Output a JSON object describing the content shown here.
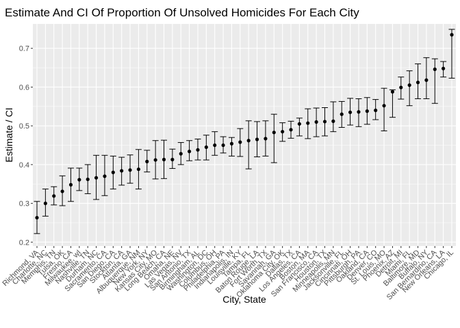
{
  "chart_data": {
    "type": "scatter",
    "title": "Estimate And CI Of Proportion Of Unsolved Homicides For Each City",
    "xlabel": "City, State",
    "ylabel": "Estimate / CI",
    "ylim": [
      0.2,
      0.75
    ],
    "yticks": [
      0.2,
      0.3,
      0.4,
      0.5,
      0.6,
      0.7
    ],
    "grid": true,
    "background": "#EBEBEB",
    "point_color": "#000000",
    "categories": [
      "Richmond, VA",
      "Charlotte, NC",
      "Memphis, TN",
      "Tulsa, OK",
      "Fresno, CA",
      "Milwaukee, wI",
      "Nashville, TN",
      "Durham, NC",
      "Sacramento, CA",
      "San Diego, CA",
      "Stockton, CA",
      "Atlanta, GA",
      "Albuquerque, NM",
      "New York, NY",
      "Kansas City, MO",
      "Long Beach, CA",
      "Omaha, NE",
      "Las Vegas, NV",
      "San Antonio, TX",
      "Birmingham, AL",
      "Washington, DC",
      "Columbus, OH",
      "Philadelphia, PA",
      "Indianapolis, IN",
      "Louisville, KY",
      "Tampa, FL",
      "Baton Rouge, LA",
      "Fort Worth, TX",
      "Savannah, GA",
      "Oklahoma City, OK",
      "Dallas, TX",
      "Los Angeles, CA",
      "Boston, MA",
      "San Francisco, CA",
      "Houston, TX",
      "Minneapolis, MN",
      "Jacksonville, FL",
      "Cincinnati, OH",
      "Pittsburgh, PA",
      "Oakland, CA",
      "Denver, CO",
      "St. Louis, MO",
      "Phoenix, AZ",
      "Detroit, MI",
      "Miami, FL",
      "Baltimore, MD",
      "Buffalo, NY",
      "San Bernardino, CA",
      "New Orleans, LA",
      "Chicago, IL"
    ],
    "estimate": [
      0.263,
      0.3,
      0.319,
      0.331,
      0.348,
      0.361,
      0.362,
      0.366,
      0.37,
      0.38,
      0.384,
      0.386,
      0.388,
      0.408,
      0.412,
      0.413,
      0.413,
      0.428,
      0.434,
      0.438,
      0.445,
      0.45,
      0.45,
      0.454,
      0.458,
      0.462,
      0.465,
      0.467,
      0.483,
      0.485,
      0.49,
      0.505,
      0.507,
      0.51,
      0.511,
      0.512,
      0.53,
      0.535,
      0.536,
      0.538,
      0.54,
      0.552,
      0.588,
      0.599,
      0.605,
      0.612,
      0.618,
      0.646,
      0.648,
      0.735
    ],
    "ci_low": [
      0.222,
      0.267,
      0.296,
      0.294,
      0.305,
      0.333,
      0.325,
      0.31,
      0.32,
      0.337,
      0.347,
      0.352,
      0.337,
      0.381,
      0.363,
      0.364,
      0.39,
      0.4,
      0.41,
      0.412,
      0.412,
      0.424,
      0.43,
      0.422,
      0.421,
      0.389,
      0.42,
      0.422,
      0.405,
      0.46,
      0.468,
      0.474,
      0.467,
      0.472,
      0.474,
      0.485,
      0.496,
      0.502,
      0.498,
      0.504,
      0.516,
      0.487,
      0.522,
      0.569,
      0.552,
      0.57,
      0.57,
      0.558,
      0.626,
      0.623
    ],
    "ci_high": [
      0.305,
      0.337,
      0.343,
      0.371,
      0.391,
      0.391,
      0.4,
      0.424,
      0.424,
      0.422,
      0.419,
      0.425,
      0.439,
      0.437,
      0.462,
      0.463,
      0.44,
      0.457,
      0.462,
      0.466,
      0.476,
      0.485,
      0.472,
      0.47,
      0.493,
      0.513,
      0.511,
      0.513,
      0.53,
      0.508,
      0.512,
      0.52,
      0.544,
      0.546,
      0.547,
      0.562,
      0.563,
      0.571,
      0.57,
      0.573,
      0.568,
      0.597,
      0.593,
      0.626,
      0.642,
      0.66,
      0.676,
      0.673,
      0.666,
      0.749
    ]
  }
}
